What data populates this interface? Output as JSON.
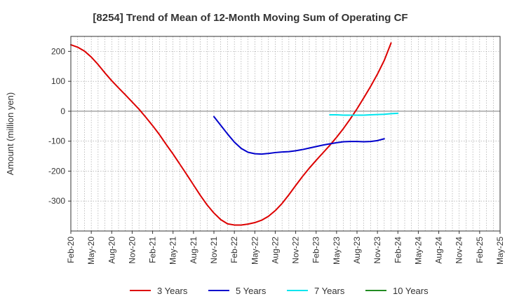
{
  "chart_data": {
    "type": "line",
    "title": "[8254]  Trend of Mean of 12-Month Moving Sum of Operating CF",
    "xlabel": "",
    "ylabel": "Amount (million yen)",
    "x_tick_labels": [
      "Feb-20",
      "May-20",
      "Aug-20",
      "Nov-20",
      "Feb-21",
      "May-21",
      "Aug-21",
      "Nov-21",
      "Feb-22",
      "May-22",
      "Aug-22",
      "Nov-22",
      "Feb-23",
      "May-23",
      "Aug-23",
      "Nov-23",
      "Feb-24",
      "May-24",
      "Aug-24",
      "Nov-24",
      "Feb-25",
      "May-25"
    ],
    "y_ticks": [
      200,
      100,
      0,
      -100,
      -200,
      -300
    ],
    "ylim": [
      -400,
      250
    ],
    "grid": true,
    "legend_position": "bottom",
    "series": [
      {
        "name": "3 Years",
        "color": "#dd0000",
        "start_index": 0,
        "values": [
          222,
          214,
          201,
          181,
          156,
          128,
          102,
          78,
          55,
          31,
          7,
          -20,
          -48,
          -78,
          -111,
          -143,
          -177,
          -211,
          -246,
          -281,
          -313,
          -340,
          -362,
          -376,
          -380,
          -380,
          -377,
          -372,
          -364,
          -351,
          -332,
          -308,
          -279,
          -248,
          -218,
          -190,
          -164,
          -139,
          -114,
          -87,
          -58,
          -26,
          8,
          45,
          83,
          124,
          170,
          228
        ]
      },
      {
        "name": "5 Years",
        "color": "#0000cc",
        "start_index": 21,
        "values": [
          -18,
          -47,
          -76,
          -103,
          -124,
          -137,
          -142,
          -143,
          -141,
          -138,
          -136,
          -135,
          -132,
          -128,
          -123,
          -118,
          -113,
          -109,
          -105,
          -102,
          -101,
          -101,
          -102,
          -101,
          -98,
          -92
        ]
      },
      {
        "name": "7 Years",
        "color": "#00e5ee",
        "start_index": 38,
        "values": [
          -12,
          -12,
          -13,
          -13,
          -13,
          -13,
          -12,
          -11,
          -10,
          -8,
          -7
        ]
      },
      {
        "name": "10 Years",
        "color": "#228b22",
        "start_index": 0,
        "values": []
      }
    ]
  }
}
